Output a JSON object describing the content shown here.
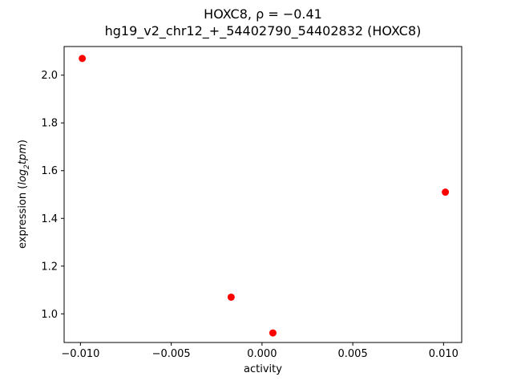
{
  "figure": {
    "title_line1": "HOXC8, ρ = −0.41",
    "title_line2": "hg19_v2_chr12_+_54402790_54402832 (HOXC8)"
  },
  "chart_data": {
    "type": "scatter",
    "title": "HOXC8, ρ = −0.41\nhg19_v2_chr12_+_54402790_54402832 (HOXC8)",
    "xlabel": "activity",
    "ylabel": "expression (log2 tpm)",
    "ylabel_parts": {
      "pre": "expression (",
      "log": "log",
      "sub": "2",
      "var": "tpm",
      "post": ")"
    },
    "points": [
      {
        "x": -0.0099,
        "y": 2.07
      },
      {
        "x": -0.0017,
        "y": 1.07
      },
      {
        "x": 0.0006,
        "y": 0.92
      },
      {
        "x": 0.0101,
        "y": 1.51
      }
    ],
    "marker_color": "#ff0000",
    "marker_size_px": 4.5,
    "xlim": [
      -0.0109,
      0.011
    ],
    "ylim": [
      0.88,
      2.12
    ],
    "x_ticks": [
      -0.01,
      -0.005,
      0.0,
      0.005,
      0.01
    ],
    "x_tick_labels": [
      "−0.010",
      "−0.005",
      "0.000",
      "0.005",
      "0.010"
    ],
    "y_ticks": [
      1.0,
      1.2,
      1.4,
      1.6,
      1.8,
      2.0
    ],
    "y_tick_labels": [
      "1.0",
      "1.2",
      "1.4",
      "1.6",
      "1.8",
      "2.0"
    ],
    "grid": false,
    "legend": null,
    "axis_color": "#000000",
    "background": "#ffffff"
  }
}
